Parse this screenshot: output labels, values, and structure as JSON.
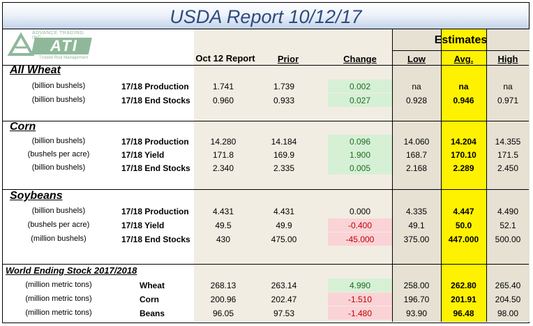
{
  "title": "USDA Report 10/12/17",
  "logo": {
    "top_text": "ADVANCE TRADING INC.",
    "mark": "ATI",
    "tagline": "Trusted Risk Management"
  },
  "headers": {
    "estimates": "Estimates",
    "report": "Oct 12 Report",
    "prior": "Prior",
    "change": "Change",
    "low": "Low",
    "avg": "Avg.",
    "high": "High"
  },
  "sections": [
    {
      "title": "All Wheat",
      "rows": [
        {
          "unit": "(billion bushels)",
          "item": "17/18 Production",
          "report": "1.741",
          "prior": "1.739",
          "change": "0.002",
          "change_sign": "pos",
          "low": "na",
          "avg": "na",
          "high": "na"
        },
        {
          "unit": "(billion bushels)",
          "item": "17/18 End Stocks",
          "report": "0.960",
          "prior": "0.933",
          "change": "0.027",
          "change_sign": "pos",
          "low": "0.928",
          "avg": "0.946",
          "high": "0.971"
        }
      ]
    },
    {
      "title": "Corn",
      "rows": [
        {
          "unit": "(billion bushels)",
          "item": "17/18 Production",
          "report": "14.280",
          "prior": "14.184",
          "change": "0.096",
          "change_sign": "pos",
          "low": "14.060",
          "avg": "14.204",
          "high": "14.355"
        },
        {
          "unit": "(bushels per  acre)",
          "item": "17/18 Yield",
          "report": "171.8",
          "prior": "169.9",
          "change": "1.900",
          "change_sign": "pos",
          "low": "168.7",
          "avg": "170.10",
          "high": "171.5"
        },
        {
          "unit": "(billion bushels)",
          "item": "17/18 End Stocks",
          "report": "2.340",
          "prior": "2.335",
          "change": "0.005",
          "change_sign": "pos",
          "low": "2.168",
          "avg": "2.289",
          "high": "2.450"
        }
      ]
    },
    {
      "title": "Soybeans",
      "rows": [
        {
          "unit": "(billion bushels)",
          "item": "17/18 Production",
          "report": "4.431",
          "prior": "4.431",
          "change": "0.000",
          "change_sign": "none",
          "low": "4.335",
          "avg": "4.447",
          "high": "4.490"
        },
        {
          "unit": "(bushels per  acre)",
          "item": "17/18 Yield",
          "report": "49.5",
          "prior": "49.9",
          "change": "-0.400",
          "change_sign": "neg",
          "low": "49.1",
          "avg": "50.0",
          "high": "52.1"
        },
        {
          "unit": "(million bushels)",
          "item": "17/18 End Stocks",
          "report": "430",
          "prior": "475.00",
          "change": "-45.000",
          "change_sign": "neg",
          "low": "375.00",
          "avg": "447.000",
          "high": "500.00"
        }
      ]
    },
    {
      "title": "World Ending Stock 2017/2018",
      "rows": [
        {
          "unit": "(million metric tons)",
          "item": "Wheat",
          "report": "268.13",
          "prior": "263.14",
          "change": "4.990",
          "change_sign": "pos",
          "low": "258.00",
          "avg": "262.80",
          "high": "265.40"
        },
        {
          "unit": "(million metric tons)",
          "item": "Corn",
          "report": "200.96",
          "prior": "202.47",
          "change": "-1.510",
          "change_sign": "neg",
          "low": "196.70",
          "avg": "201.91",
          "high": "204.50"
        },
        {
          "unit": "(million metric tons)",
          "item": "Beans",
          "report": "96.05",
          "prior": "97.53",
          "change": "-1.480",
          "change_sign": "neg",
          "low": "93.90",
          "avg": "96.48",
          "high": "98.00"
        }
      ]
    }
  ],
  "colors": {
    "title": "#2f4a7d",
    "avg_column": "#fff200",
    "change_positive": "#d6f0d6",
    "change_negative": "#fad3d6",
    "estimates_shade": "#e6e1d3",
    "report_shade": "#f1ede2"
  }
}
